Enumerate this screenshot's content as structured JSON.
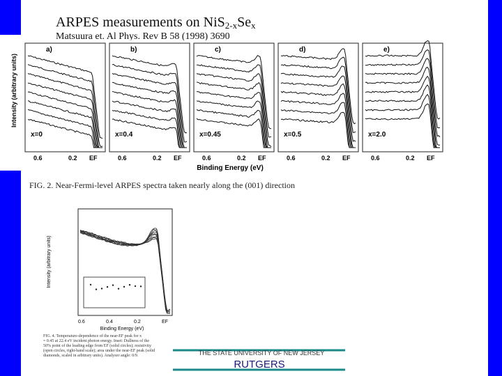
{
  "title": {
    "main": "ARPES measurements on NiS",
    "sub1": "2-x",
    "mid": "Se",
    "sub2": "x"
  },
  "citation": "Matsuura et. Al Phys. Rev B 58 (1998) 3690",
  "figure2": {
    "y_label": "Intensity (arbitrary units)",
    "x_label": "Binding Energy (eV)",
    "caption": "FIG. 2. Near-Fermi-level ARPES spectra taken nearly along the (001) direction",
    "panels": [
      {
        "tag": "a)",
        "composition": "x=0",
        "ticks": [
          "0.6",
          "0.2",
          "EF"
        ]
      },
      {
        "tag": "b)",
        "composition": "x=0.4",
        "ticks": [
          "0.6",
          "0.2",
          "EF"
        ]
      },
      {
        "tag": "c)",
        "composition": "x=0.45",
        "ticks": [
          "0.6",
          "0.2",
          "EF"
        ]
      },
      {
        "tag": "d)",
        "composition": "x=0.5",
        "ticks": [
          "0.6",
          "0.2",
          "EF"
        ]
      },
      {
        "tag": "e)",
        "composition": "x=2.0",
        "ticks": [
          "0.6",
          "0.2",
          "EF"
        ]
      }
    ]
  },
  "figure4": {
    "y_label": "Intensity (arbitrary units)",
    "x_label": "Binding Energy (eV)",
    "ticks": [
      "0.6",
      "0.4",
      "0.2",
      "EF"
    ],
    "caption": [
      "FIG. 4. Temperature-dependence of the near-EF peak for x",
      "= 0.45 at 22.4 eV incident photon energy. Inset: Dullness of the",
      "50% point of the leading edge from EF (solid circles); resistivity",
      "(open circles, right-hand scale); area under the near-EF peak (solid",
      "diamonds, scaled in arbitrary units). Analyzer angle: 0/9."
    ]
  },
  "footer": {
    "university": "THE STATE UNIVERSITY OF NEW JERSEY",
    "name": "RUTGERS"
  }
}
